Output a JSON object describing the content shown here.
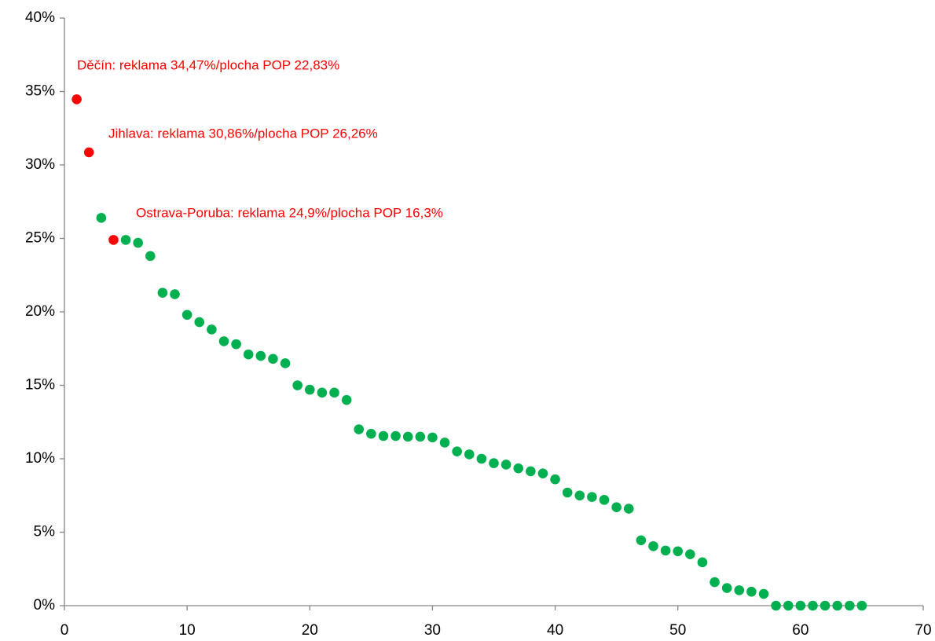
{
  "chart_data": {
    "type": "scatter",
    "xlim": [
      0,
      70
    ],
    "xticks": [
      0,
      10,
      20,
      30,
      40,
      50,
      60,
      70
    ],
    "ylim": [
      0,
      40
    ],
    "yticks": [
      {
        "value": 0,
        "label": "0%"
      },
      {
        "value": 5,
        "label": "5%"
      },
      {
        "value": 10,
        "label": "10%"
      },
      {
        "value": 15,
        "label": "15%"
      },
      {
        "value": 20,
        "label": "20%"
      },
      {
        "value": 25,
        "label": "25%"
      },
      {
        "value": 30,
        "label": "30%"
      },
      {
        "value": 35,
        "label": "35%"
      },
      {
        "value": 40,
        "label": "40%"
      }
    ],
    "series": [
      {
        "color": "#00b050",
        "x": [
          3,
          5,
          6,
          7,
          8,
          9,
          10,
          11,
          12,
          13,
          14,
          15,
          16,
          17,
          18,
          19,
          20,
          21,
          22,
          23,
          24,
          25,
          26,
          27,
          28,
          29,
          30,
          31,
          32,
          33,
          34,
          35,
          36,
          37,
          38,
          39,
          40,
          41,
          42,
          43,
          44,
          45,
          46,
          47,
          48,
          49,
          50,
          51,
          52,
          53,
          54,
          55,
          56,
          57,
          58,
          59,
          60,
          61,
          62,
          63,
          64,
          65
        ],
        "values": [
          26.4,
          24.9,
          24.7,
          23.8,
          21.3,
          21.2,
          19.8,
          19.3,
          18.8,
          18.0,
          17.8,
          17.1,
          17.0,
          16.8,
          16.5,
          15.0,
          14.7,
          14.5,
          14.5,
          14.0,
          12.0,
          11.7,
          11.55,
          11.55,
          11.5,
          11.5,
          11.45,
          11.1,
          10.5,
          10.3,
          10.0,
          9.7,
          9.6,
          9.35,
          9.15,
          9.0,
          8.6,
          7.7,
          7.5,
          7.4,
          7.2,
          6.7,
          6.6,
          4.45,
          4.05,
          3.75,
          3.7,
          3.5,
          2.95,
          1.6,
          1.2,
          1.05,
          0.95,
          0.8,
          0,
          0,
          0,
          0,
          0,
          0,
          0,
          0
        ]
      },
      {
        "color": "#ff0000",
        "x": [
          1,
          2,
          4
        ],
        "values": [
          34.47,
          30.86,
          24.9
        ]
      }
    ],
    "annotations": [
      "Děčín: reklama  34,47%/plocha POP  22,83%",
      "Jihlava: reklama  30,86%/plocha POP  26,26%",
      "Ostrava-Poruba: reklama  24,9%/plocha POP 16,3%"
    ]
  }
}
